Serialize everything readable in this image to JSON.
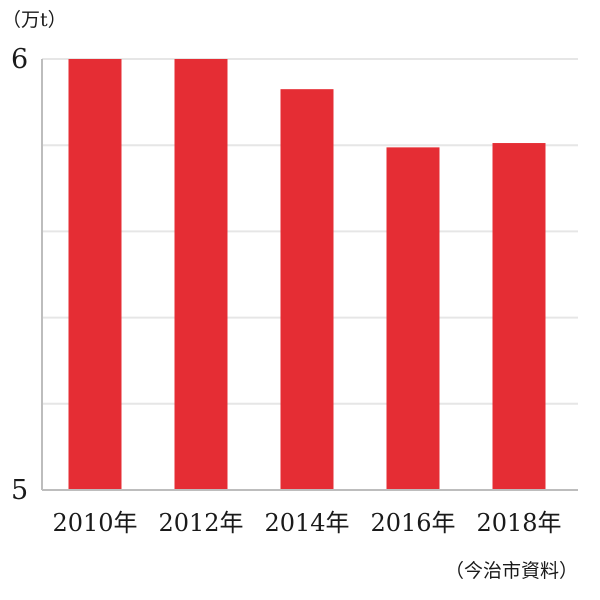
{
  "chart_data": {
    "type": "bar",
    "unit": "（万t）",
    "source": "（今治市資料）",
    "categories": [
      "2010年",
      "2012年",
      "2014年",
      "2016年",
      "2018年"
    ],
    "values": [
      6.0,
      6.0,
      5.93,
      5.795,
      5.805
    ],
    "ylim": [
      5,
      6
    ],
    "y_tick_labels": [
      "5",
      "6"
    ],
    "y_gridlines": [
      5.0,
      5.2,
      5.4,
      5.6,
      5.8,
      6.0
    ],
    "grid": true,
    "bar_color": "#e52d34",
    "grid_color": "#e6e6e6",
    "axis_color": "#bdbdbd"
  }
}
